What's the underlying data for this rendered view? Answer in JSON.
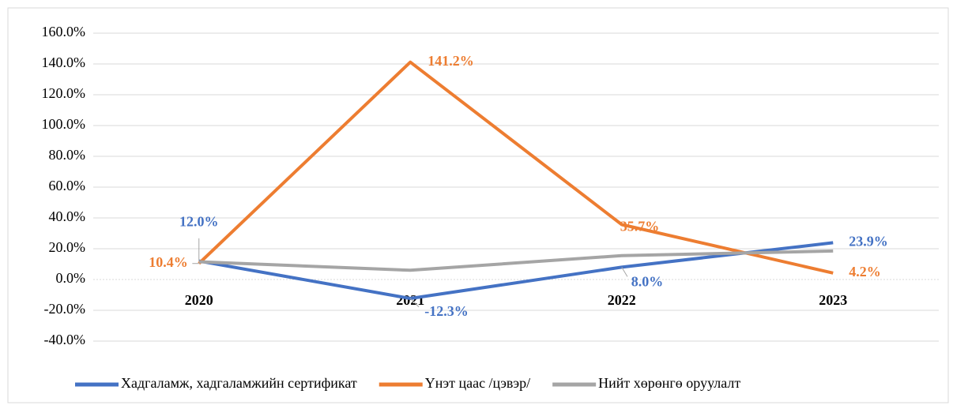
{
  "chart_data": {
    "type": "line",
    "categories": [
      "2020",
      "2021",
      "2022",
      "2023"
    ],
    "series": [
      {
        "name": "Хадгаламж, хадгаламжийн сертификат",
        "color": "#4472c4",
        "values": [
          12.0,
          -12.3,
          8.0,
          23.9
        ],
        "value_labels": [
          "12.0%",
          "-12.3%",
          "8.0%",
          "23.9%"
        ]
      },
      {
        "name": "Үнэт цаас /цэвэр/",
        "color": "#ed7d31",
        "values": [
          10.4,
          141.2,
          35.7,
          4.2
        ],
        "value_labels": [
          "10.4%",
          "141.2%",
          "35.7%",
          "4.2%"
        ]
      },
      {
        "name": "Нийт хөрөнгө оруулалт",
        "color": "#a5a5a5",
        "values": [
          11.5,
          6.0,
          15.5,
          18.5
        ]
      }
    ],
    "ylim": [
      -40,
      160
    ],
    "yticks": [
      {
        "value": -40,
        "label": "-40.0%"
      },
      {
        "value": -20,
        "label": "-20.0%"
      },
      {
        "value": 0,
        "label": "0.0%"
      },
      {
        "value": 20,
        "label": "20.0%"
      },
      {
        "value": 40,
        "label": "40.0%"
      },
      {
        "value": 60,
        "label": "60.0%"
      },
      {
        "value": 80,
        "label": "80.0%"
      },
      {
        "value": 100,
        "label": "100.0%"
      },
      {
        "value": 120,
        "label": "120.0%"
      },
      {
        "value": 140,
        "label": "140.0%"
      },
      {
        "value": 160,
        "label": "160.0%"
      }
    ],
    "grid": true,
    "legend": "bottom"
  }
}
